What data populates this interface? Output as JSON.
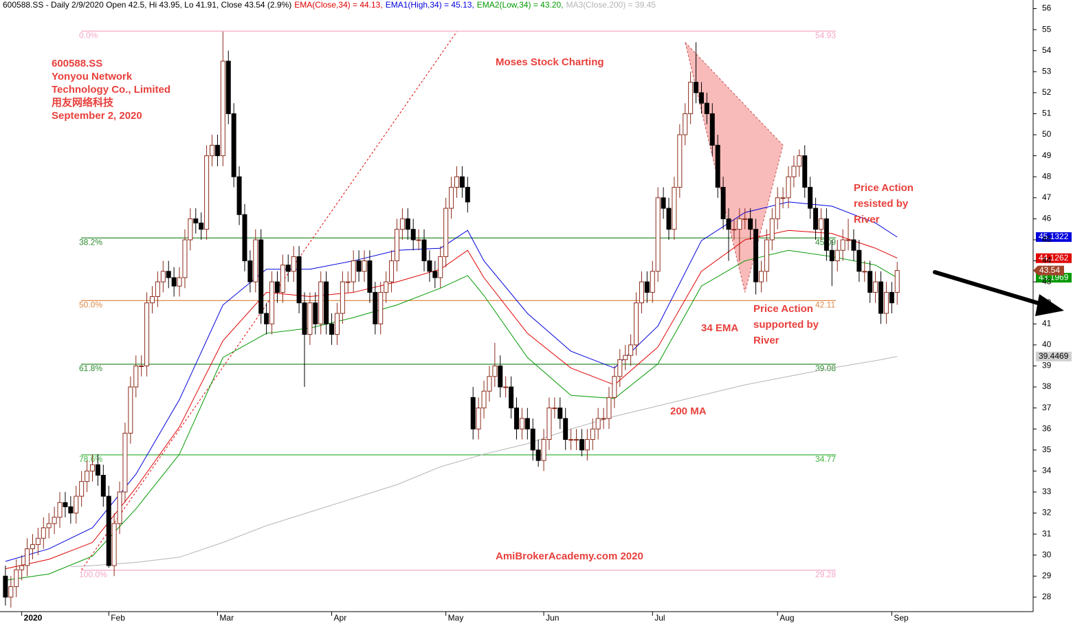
{
  "chart_data": {
    "type": "candlestick",
    "header": "600588.SS - Daily 2/9/2020 Open 42.5, Hi 43.95, Lo 41.91, Close 43.54 (2.9%)",
    "up_color": "#8b2a1a",
    "down_color": "#000000",
    "xlim": [
      -1,
      189
    ],
    "xticks": [
      {
        "value": 3,
        "label": "2020"
      },
      {
        "value": 19,
        "label": "Feb"
      },
      {
        "value": 39,
        "label": "Mar"
      },
      {
        "value": 60,
        "label": "Apr"
      },
      {
        "value": 81,
        "label": "May"
      },
      {
        "value": 99,
        "label": "Jun"
      },
      {
        "value": 119,
        "label": "Jul"
      },
      {
        "value": 142,
        "label": "Aug"
      },
      {
        "value": 163,
        "label": "Sep"
      }
    ],
    "ylim": [
      27.31,
      56.41
    ],
    "yticks": [
      28,
      29,
      30,
      31,
      32,
      33,
      34,
      35,
      36,
      37,
      38,
      39,
      40,
      41,
      42,
      43,
      44,
      45,
      46,
      47,
      48,
      49,
      50,
      51,
      52,
      53,
      54,
      55,
      56
    ],
    "open": [
      29,
      28,
      28.5,
      29.3,
      29.5,
      30.3,
      30.5,
      30.8,
      31.3,
      31.5,
      31.8,
      32.5,
      32.3,
      32,
      32.8,
      33.5,
      34,
      34.3,
      33.8,
      32.8,
      29.5,
      31.5,
      33,
      35.8,
      38,
      39,
      39,
      42,
      42.3,
      43,
      43.5,
      43.2,
      42.8,
      43.2,
      45,
      46,
      45.8,
      45.5,
      49,
      49.5,
      49,
      53.5,
      51,
      48,
      46.2,
      44,
      43,
      45,
      41.5,
      41,
      43,
      42.5,
      43.8,
      43.5,
      44.2,
      42,
      40.5,
      42,
      41,
      43,
      41,
      40.5,
      41.5,
      43,
      43,
      44,
      43.5,
      44,
      42.5,
      41,
      42.5,
      43,
      44,
      45.5,
      46,
      45.5,
      45,
      45,
      44,
      43.5,
      43.2,
      44.2,
      46.5,
      47.5,
      48,
      47.5,
      37.5,
      36,
      37,
      37.8,
      38.5,
      39,
      38,
      38,
      37,
      36,
      36.5,
      36,
      35,
      34.5,
      35.5,
      37,
      37,
      36.5,
      35.5,
      35.5,
      35.5,
      35,
      35.5,
      36,
      36.5,
      36.5,
      37.5,
      38.5,
      39.3,
      39.5,
      40,
      42,
      43,
      42.5,
      43.5,
      47,
      46.5,
      45.5,
      47.5,
      50,
      51,
      52.5,
      52,
      51.5,
      51,
      49.5,
      47.5,
      46,
      45.5,
      45.5,
      46,
      46,
      45.5,
      43,
      43.5,
      45,
      46,
      47,
      47,
      48,
      48.5,
      49,
      47.5,
      46.5,
      45.5,
      46,
      44.5,
      44,
      44.5,
      45,
      45,
      44.5,
      43.5,
      43.5,
      42.5,
      43,
      41.5,
      42.5,
      42.5
    ],
    "high": [
      29.5,
      29,
      29.8,
      30,
      30.8,
      31,
      31.3,
      31.8,
      32,
      32.3,
      33,
      33,
      32.8,
      33.3,
      34,
      34.5,
      34.8,
      34.8,
      34.3,
      33.3,
      32,
      33.5,
      36.3,
      38.5,
      39.5,
      39.5,
      42.5,
      42.8,
      43.5,
      44,
      44,
      43.7,
      43.7,
      45.5,
      46.5,
      46.5,
      46.3,
      49.5,
      50,
      50,
      54.9,
      54,
      51.5,
      48.5,
      46.7,
      44.5,
      45.5,
      45.5,
      42,
      43.5,
      43.5,
      44.3,
      44.3,
      44.7,
      44.7,
      42.5,
      42.5,
      42.5,
      43.5,
      43.5,
      41.5,
      42,
      43.5,
      43.5,
      44.5,
      44.5,
      44.5,
      44.5,
      43,
      43,
      43.5,
      44.5,
      46,
      46.5,
      46.5,
      46,
      45.5,
      45.5,
      44.5,
      44,
      44.7,
      47,
      48,
      48.5,
      48.5,
      48,
      38,
      37.5,
      38.3,
      39,
      40.1,
      39.5,
      38.5,
      38.5,
      37.5,
      37,
      37,
      36.5,
      35.5,
      36,
      37.5,
      37.5,
      37.5,
      37,
      36,
      36,
      36,
      36,
      36.5,
      37,
      37,
      38,
      39,
      39.8,
      40,
      40.5,
      42.5,
      43.5,
      43.5,
      44,
      47.5,
      47.5,
      47,
      48,
      50.5,
      51.5,
      53,
      54.4,
      52.5,
      52,
      51.5,
      50,
      48,
      46.5,
      46,
      46.5,
      46.5,
      46.5,
      46,
      44,
      45.5,
      46.5,
      47.5,
      47.5,
      48.5,
      49,
      49.3,
      49.5,
      48,
      47,
      46.5,
      46.5,
      45,
      45,
      45.5,
      46,
      45.5,
      45,
      44,
      44,
      43.5,
      43.5,
      43,
      43,
      43.95
    ],
    "low": [
      27.6,
      27.5,
      28,
      28.8,
      29,
      29.8,
      30,
      30.3,
      30.8,
      31,
      31.3,
      31.8,
      31.5,
      31.5,
      32.3,
      33,
      33.5,
      33.3,
      32.3,
      29.4,
      29,
      31,
      32.5,
      35.3,
      37.5,
      38.5,
      38.5,
      41.5,
      41.8,
      42.5,
      42.7,
      42.3,
      42.3,
      42.7,
      44.5,
      45.3,
      45,
      45,
      48.5,
      48.5,
      48.5,
      50.5,
      47.5,
      45.7,
      43.5,
      42.5,
      42.5,
      41,
      40.5,
      40.5,
      42,
      42,
      43,
      43,
      41.5,
      38,
      40,
      40.5,
      40.5,
      40.5,
      40,
      40,
      41,
      42.5,
      42.5,
      43,
      43,
      42,
      40.5,
      40.5,
      42,
      42.5,
      43.5,
      45,
      45,
      44.5,
      44.5,
      43.5,
      43,
      42.7,
      42.7,
      43.7,
      46,
      47,
      47,
      46.3,
      35.5,
      35.5,
      36.5,
      37.3,
      38,
      37.5,
      37.5,
      36.5,
      35.5,
      35.5,
      35.5,
      34.5,
      34.2,
      34,
      35,
      36.5,
      36,
      35,
      35,
      35,
      34.7,
      34.5,
      35,
      35.5,
      36,
      36,
      37,
      38,
      38.8,
      39,
      39.5,
      41.5,
      42,
      42,
      43,
      46,
      45,
      45,
      47,
      49.5,
      50.5,
      51.5,
      51,
      50.5,
      49,
      47,
      45.5,
      44,
      45,
      44,
      45.5,
      45,
      42.4,
      42.5,
      43,
      44.5,
      45.5,
      46.5,
      46.5,
      47.5,
      48,
      47,
      46,
      45,
      45,
      44,
      42.8,
      43.5,
      44,
      44.5,
      44,
      43,
      43,
      42,
      42,
      41,
      41,
      41.5,
      41.91
    ],
    "close": [
      28,
      28.5,
      29.3,
      29.5,
      30.3,
      30.5,
      30.8,
      31.3,
      31.5,
      31.8,
      32.5,
      32.3,
      32,
      32.8,
      33.5,
      34,
      34.3,
      33.8,
      32.8,
      29.5,
      31.5,
      33,
      35.8,
      38,
      39,
      39,
      42,
      42.3,
      43,
      43.5,
      43.2,
      42.8,
      43.2,
      45,
      46,
      45.8,
      45.5,
      49,
      49.5,
      49,
      53.5,
      51,
      48,
      46.2,
      44,
      43,
      45,
      41.5,
      41,
      43,
      42.5,
      43.8,
      43.5,
      44.2,
      42,
      40.5,
      42,
      41,
      43,
      41,
      40.5,
      41.5,
      43,
      43,
      44,
      43.5,
      44,
      42.5,
      41,
      42.5,
      43,
      44,
      45.5,
      46,
      45.5,
      45,
      45,
      44,
      43.5,
      43.2,
      44.2,
      46.5,
      47.5,
      48,
      47.5,
      46.8,
      36,
      37,
      37.8,
      38.5,
      39,
      38,
      38,
      37,
      36,
      36.5,
      36,
      35,
      34.5,
      35.5,
      37,
      37,
      36.5,
      35.5,
      35.5,
      35.5,
      35,
      35.5,
      36,
      36.5,
      36.5,
      37.5,
      38.5,
      39.3,
      39.5,
      40,
      42,
      43,
      42.5,
      43.5,
      47,
      46.5,
      45.5,
      47.5,
      50,
      51,
      52.5,
      52,
      51.5,
      51,
      49.5,
      47.5,
      46,
      45.5,
      45.5,
      46,
      46,
      45.5,
      43,
      43.5,
      45,
      46,
      47,
      47,
      48,
      48.5,
      49,
      47.5,
      46.5,
      45.5,
      46,
      44.5,
      44,
      44.5,
      45,
      45,
      44.5,
      43.5,
      43.5,
      42.5,
      43,
      41.5,
      42.5,
      42,
      43.54
    ],
    "close_color": "#a0452a",
    "series": [
      {
        "name": "EMA(Close,34) = 44.13,",
        "color": "#e00000",
        "end_value": 44.1262,
        "x": [
          0,
          8,
          16,
          24,
          32,
          40,
          48,
          56,
          64,
          72,
          80,
          85,
          88,
          96,
          104,
          112,
          120,
          128,
          136,
          144,
          152,
          160,
          164
        ],
        "values": [
          29.35,
          29.8,
          30.6,
          33.2,
          36.1,
          40.2,
          42.5,
          42.3,
          42.5,
          43,
          43.6,
          44.5,
          43.2,
          40.55,
          38.9,
          38.1,
          39.9,
          43.5,
          45,
          45.45,
          45.3,
          44.6,
          44.13
        ]
      },
      {
        "name": "EMA1(High,34) = 45.13,",
        "color": "#0000dd",
        "end_value": 45.1322,
        "x": [
          0,
          8,
          16,
          24,
          32,
          40,
          48,
          56,
          64,
          72,
          80,
          85,
          88,
          96,
          104,
          112,
          120,
          128,
          136,
          144,
          152,
          160,
          164
        ],
        "values": [
          29.7,
          30.3,
          31.3,
          33.85,
          37.4,
          41.9,
          43.6,
          43.6,
          44,
          44.5,
          44.6,
          45.45,
          44,
          41.5,
          39.7,
          38.9,
          40.9,
          44.96,
          46.3,
          46.8,
          46.6,
          45.8,
          45.13
        ]
      },
      {
        "name": "EMA2(Low,34) = 43.20,",
        "color": "#009900",
        "end_value": 43.1969,
        "x": [
          0,
          8,
          16,
          24,
          32,
          40,
          48,
          56,
          64,
          72,
          80,
          85,
          88,
          96,
          104,
          112,
          120,
          128,
          136,
          144,
          152,
          160,
          164
        ],
        "values": [
          28.8,
          29.1,
          29.95,
          32.2,
          34.8,
          39.4,
          40.55,
          40.8,
          41.3,
          41.9,
          42.7,
          43.3,
          42.35,
          39.4,
          37.6,
          37.45,
          39.1,
          42.8,
          44,
          44.5,
          44.2,
          43.8,
          43.2
        ]
      },
      {
        "name": "MA3(Close,200) = 39.45",
        "color": "#b4b4b4",
        "end_value": 39.4469,
        "x": [
          12,
          16,
          24,
          32,
          40,
          48,
          56,
          64,
          72,
          80,
          88,
          96,
          104,
          112,
          120,
          128,
          136,
          144,
          152,
          160,
          164
        ],
        "values": [
          29.45,
          29.5,
          29.65,
          29.9,
          30.6,
          31.4,
          32.05,
          32.7,
          33.35,
          34.2,
          34.8,
          35.3,
          36,
          36.6,
          37.1,
          37.6,
          38.1,
          38.5,
          38.9,
          39.25,
          39.45
        ]
      }
    ],
    "fib_levels": [
      {
        "label": "0.0%",
        "value": 54.93,
        "color": "#f4a6c8"
      },
      {
        "label": "38.2%",
        "value": 45.09,
        "color": "#2e8b2e"
      },
      {
        "label": "50.0%",
        "value": 42.11,
        "color": "#e08a4a"
      },
      {
        "label": "61.8%",
        "value": 39.08,
        "color": "#2e8b2e"
      },
      {
        "label": "78.6%",
        "value": 34.77,
        "color": "#3cb43c"
      },
      {
        "label": "100.0%",
        "value": 29.28,
        "color": "#f4a6c8"
      }
    ],
    "trendline": {
      "color": "#e00000",
      "x": [
        14,
        83
      ],
      "values": [
        29.3,
        54.9
      ]
    },
    "pattern": {
      "color": "#f7a3a3",
      "x": [
        125,
        143,
        136
      ],
      "values": [
        54.4,
        49.5,
        42.5
      ]
    },
    "annotations": [
      {
        "lines": [
          "600588.SS",
          "Yonyou Network",
          "Technology Co., Limited",
          "用友网络科技",
          "September 2, 2020"
        ]
      },
      {
        "lines": [
          "Moses Stock Charting"
        ]
      },
      {
        "lines": [
          "Price Action",
          "resisted by",
          "River"
        ]
      },
      {
        "lines": [
          "Price Action",
          "supported by",
          "River"
        ]
      },
      {
        "lines": [
          "34 EMA"
        ]
      },
      {
        "lines": [
          "200 MA"
        ]
      },
      {
        "lines": [
          "AmiBrokerAcademy.com  2020"
        ]
      }
    ]
  }
}
